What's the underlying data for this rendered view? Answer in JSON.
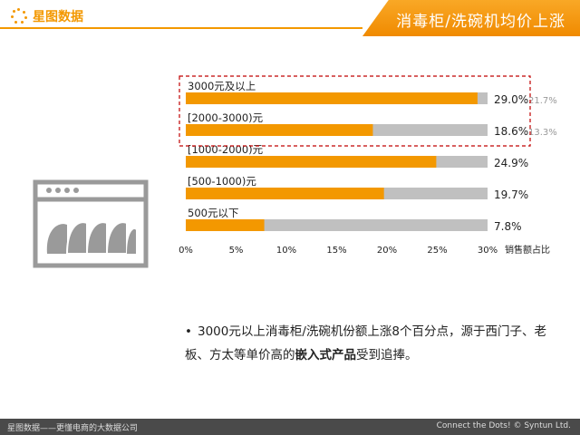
{
  "header": {
    "brand": "星图数据",
    "title": "消毒柜/洗碗机均价上涨"
  },
  "chart_data": {
    "type": "bar",
    "orientation": "horizontal",
    "categories": [
      "3000元及以上",
      "[2000-3000)元",
      "[1000-2000)元",
      "[500-1000)元",
      "500元以下"
    ],
    "series": [
      {
        "values": [
          29.0,
          18.6,
          24.9,
          19.7,
          7.8
        ],
        "color": "#f39800"
      }
    ],
    "data_labels": [
      "29.0%",
      "18.6%",
      "24.9%",
      "19.7%",
      "7.8%"
    ],
    "side_labels": [
      "21.7%",
      "13.3%",
      "",
      "",
      ""
    ],
    "track_color": "#c0c0c0",
    "xlim": [
      0,
      30
    ],
    "x_ticks": [
      0,
      5,
      10,
      15,
      20,
      25,
      30
    ],
    "x_tick_labels": [
      "0%",
      "5%",
      "10%",
      "15%",
      "20%",
      "25%",
      "30%"
    ],
    "xlabel": "销售额占比",
    "highlight_categories": [
      "3000元及以上",
      "[2000-3000)元"
    ],
    "highlight_color": "#c00000",
    "grid": false
  },
  "bullet": {
    "marker": "•",
    "text_before": "3000元以上消毒柜/洗碗机份额上涨8个百分点，源于西门子、老板、方太等单价高的",
    "bold": "嵌入式产品",
    "text_after": "受到追捧。"
  },
  "footer": {
    "left": "星图数据——更懂电商的大数据公司",
    "right": "Connect the Dots! © Syntun Ltd."
  }
}
